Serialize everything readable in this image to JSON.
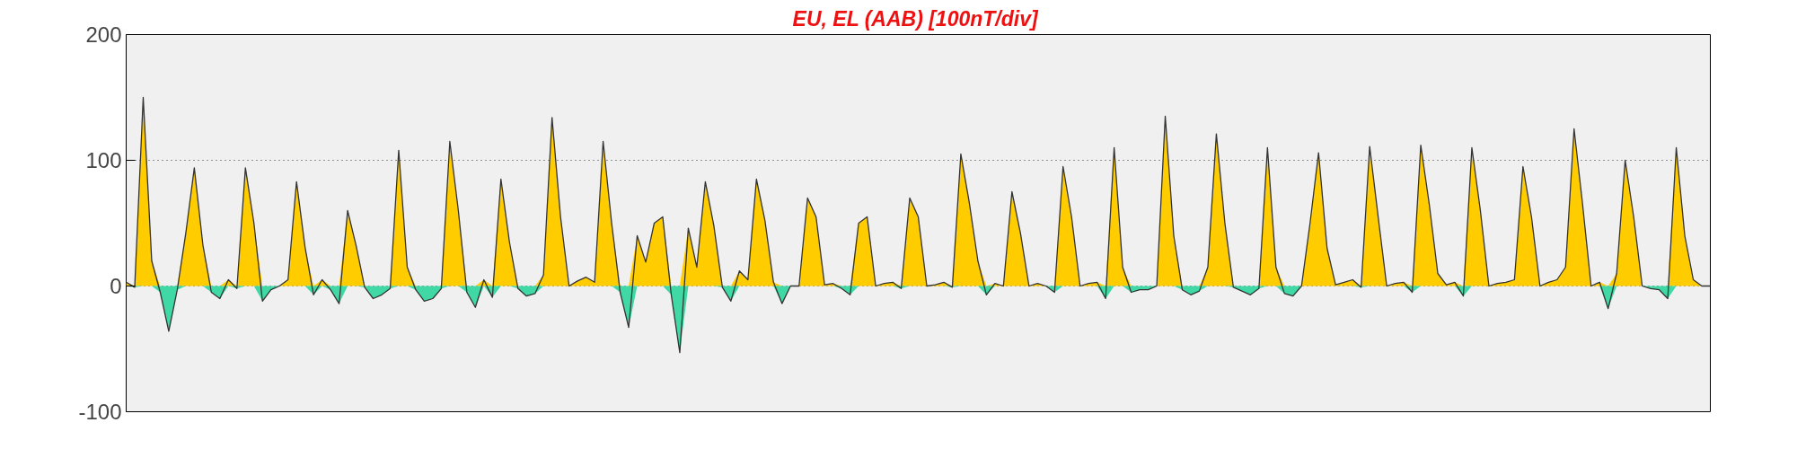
{
  "chart_data": {
    "type": "area",
    "title": "EU, EL (AAB)  [100nT/div]",
    "categories": [
      null,
      null,
      null,
      null,
      null,
      null,
      null,
      null,
      null,
      null,
      null,
      null,
      null,
      null,
      null,
      null,
      null,
      null,
      null,
      null,
      null,
      null,
      null,
      null,
      null,
      null,
      null,
      null,
      null,
      null,
      null,
      null,
      null,
      null,
      null,
      null,
      null,
      null,
      null,
      null,
      null,
      null,
      null,
      null,
      null,
      null,
      null,
      null,
      null,
      null,
      null,
      null,
      null,
      null,
      null,
      null,
      null,
      null,
      null,
      null,
      null,
      null,
      null,
      null,
      null,
      null,
      null,
      null,
      null,
      null,
      null,
      null,
      null,
      null,
      null,
      null,
      null,
      null,
      null,
      null,
      null,
      null,
      null,
      null,
      null,
      null,
      null,
      null,
      null,
      null,
      null,
      null,
      null,
      null,
      null,
      null,
      null,
      null,
      null,
      null,
      null,
      null,
      null,
      null,
      null,
      null,
      null,
      null,
      null,
      null,
      null,
      null,
      null,
      null,
      null,
      null,
      null,
      null,
      null,
      null,
      null,
      null,
      null,
      null,
      null,
      null,
      null,
      null,
      null,
      null,
      null,
      null,
      null,
      null,
      null,
      null,
      null,
      null,
      null,
      null,
      null,
      null,
      null,
      null,
      null,
      null,
      null,
      null,
      null,
      null,
      null,
      null,
      null,
      null,
      null,
      null,
      null,
      null,
      null,
      null,
      null,
      null,
      null,
      null,
      null,
      null,
      null,
      null,
      null,
      null,
      null,
      null,
      null,
      null,
      null,
      null,
      null,
      null,
      null,
      null,
      null,
      null,
      null,
      null,
      null,
      null,
      null
    ],
    "ylim": [
      -100,
      200
    ],
    "yticks": [
      -100,
      0,
      100,
      200
    ],
    "grid": "y",
    "tick_labels": "y",
    "series": [
      {
        "color": "#ffcc00",
        "values": [
          3,
          0,
          150,
          20,
          0,
          0,
          0,
          42,
          94,
          33,
          0,
          0,
          5,
          0,
          94,
          50,
          0,
          0,
          0,
          5,
          83,
          31,
          0,
          5,
          0,
          0,
          60,
          32,
          0,
          0,
          0,
          0,
          108,
          15,
          0,
          0,
          0,
          0,
          115,
          60,
          0,
          0,
          5,
          0,
          85,
          35,
          0,
          0,
          0,
          9,
          134,
          55,
          0,
          4,
          7,
          3,
          115,
          50,
          0,
          0,
          40,
          19,
          50,
          55,
          0,
          0,
          46,
          15,
          83,
          48,
          0,
          0,
          12,
          5,
          85,
          52,
          3,
          0,
          0,
          0,
          70,
          55,
          1,
          2,
          0,
          0,
          50,
          55,
          0,
          2,
          3,
          0,
          70,
          55,
          0,
          1,
          3,
          0,
          105,
          66,
          20,
          0,
          2,
          0,
          75,
          42,
          0,
          2,
          0,
          0,
          95,
          55,
          0,
          2,
          3,
          0,
          110,
          15,
          0,
          0,
          0,
          0,
          135,
          40,
          0,
          0,
          0,
          15,
          121,
          50,
          0,
          0,
          0,
          0,
          110,
          15,
          0,
          0,
          0,
          50,
          106,
          30,
          1,
          3,
          5,
          0,
          111,
          55,
          0,
          2,
          3,
          0,
          112,
          65,
          10,
          1,
          3,
          0,
          110,
          60,
          0,
          2,
          3,
          5,
          95,
          55,
          0,
          3,
          5,
          15,
          125,
          65,
          0,
          3,
          0,
          10,
          100,
          55,
          0,
          0,
          0,
          0,
          110,
          40,
          5,
          0,
          0
        ]
      },
      {
        "color": "#40d9a6",
        "values": [
          0,
          -1,
          0,
          0,
          -5,
          -36,
          -3,
          0,
          0,
          0,
          -5,
          -10,
          0,
          -2,
          0,
          0,
          -12,
          -3,
          0,
          0,
          0,
          0,
          -7,
          0,
          -3,
          -14,
          0,
          0,
          -1,
          -10,
          -7,
          -2,
          0,
          0,
          -3,
          -12,
          -10,
          -2,
          0,
          0,
          -5,
          -17,
          0,
          -9,
          0,
          0,
          -2,
          -8,
          -6,
          0,
          0,
          0,
          0,
          0,
          0,
          0,
          0,
          0,
          -5,
          -33,
          0,
          0,
          0,
          0,
          -7,
          -53,
          0,
          0,
          0,
          0,
          -1,
          -12,
          0,
          0,
          0,
          0,
          0,
          -14,
          0,
          0,
          0,
          0,
          0,
          0,
          -2,
          -7,
          0,
          0,
          0,
          0,
          0,
          -2,
          0,
          0,
          0,
          0,
          0,
          -1,
          0,
          0,
          0,
          -7,
          0,
          0,
          0,
          0,
          0,
          0,
          0,
          -5,
          0,
          0,
          0,
          0,
          0,
          -10,
          0,
          0,
          -5,
          -3,
          -3,
          0,
          0,
          0,
          -3,
          -7,
          -4,
          0,
          0,
          0,
          -1,
          -4,
          -7,
          -2,
          0,
          0,
          -6,
          -8,
          0,
          0,
          0,
          0,
          0,
          0,
          0,
          -1,
          0,
          0,
          0,
          0,
          0,
          -5,
          0,
          0,
          0,
          0,
          0,
          -8,
          0,
          0,
          0,
          0,
          0,
          0,
          0,
          0,
          0,
          0,
          0,
          0,
          0,
          0,
          0,
          0,
          -18,
          0,
          0,
          0,
          0,
          -2,
          -3,
          -10,
          0,
          0,
          0,
          0,
          0
        ]
      },
      {
        "type": "line",
        "color": "#333333",
        "values": [
          3,
          -1,
          150,
          20,
          -5,
          -36,
          -3,
          42,
          94,
          33,
          -5,
          -10,
          5,
          -2,
          94,
          50,
          -12,
          -3,
          0,
          5,
          83,
          31,
          -7,
          5,
          -3,
          -14,
          60,
          32,
          -1,
          -10,
          -7,
          -2,
          108,
          15,
          -3,
          -12,
          -10,
          -2,
          115,
          60,
          -5,
          -17,
          5,
          -9,
          85,
          35,
          -2,
          -8,
          -6,
          9,
          134,
          55,
          0,
          4,
          7,
          3,
          115,
          50,
          -5,
          -33,
          40,
          19,
          50,
          55,
          -7,
          -53,
          46,
          15,
          83,
          48,
          -1,
          -12,
          12,
          5,
          85,
          52,
          3,
          -14,
          0,
          0,
          70,
          55,
          1,
          2,
          -2,
          -7,
          50,
          55,
          0,
          2,
          3,
          -2,
          70,
          55,
          0,
          1,
          3,
          -1,
          105,
          66,
          20,
          -7,
          2,
          0,
          75,
          42,
          0,
          2,
          0,
          -5,
          95,
          55,
          0,
          2,
          3,
          -10,
          110,
          15,
          -5,
          -3,
          -3,
          0,
          135,
          40,
          -3,
          -7,
          -4,
          15,
          121,
          50,
          -1,
          -4,
          -7,
          -2,
          110,
          15,
          -6,
          -8,
          0,
          50,
          106,
          30,
          1,
          3,
          5,
          -1,
          111,
          55,
          0,
          2,
          3,
          -5,
          112,
          65,
          10,
          1,
          3,
          -8,
          110,
          60,
          0,
          2,
          3,
          5,
          95,
          55,
          0,
          3,
          5,
          15,
          125,
          65,
          0,
          3,
          -18,
          10,
          100,
          55,
          0,
          -2,
          -3,
          -10,
          110,
          40,
          5,
          0,
          0
        ]
      }
    ]
  }
}
